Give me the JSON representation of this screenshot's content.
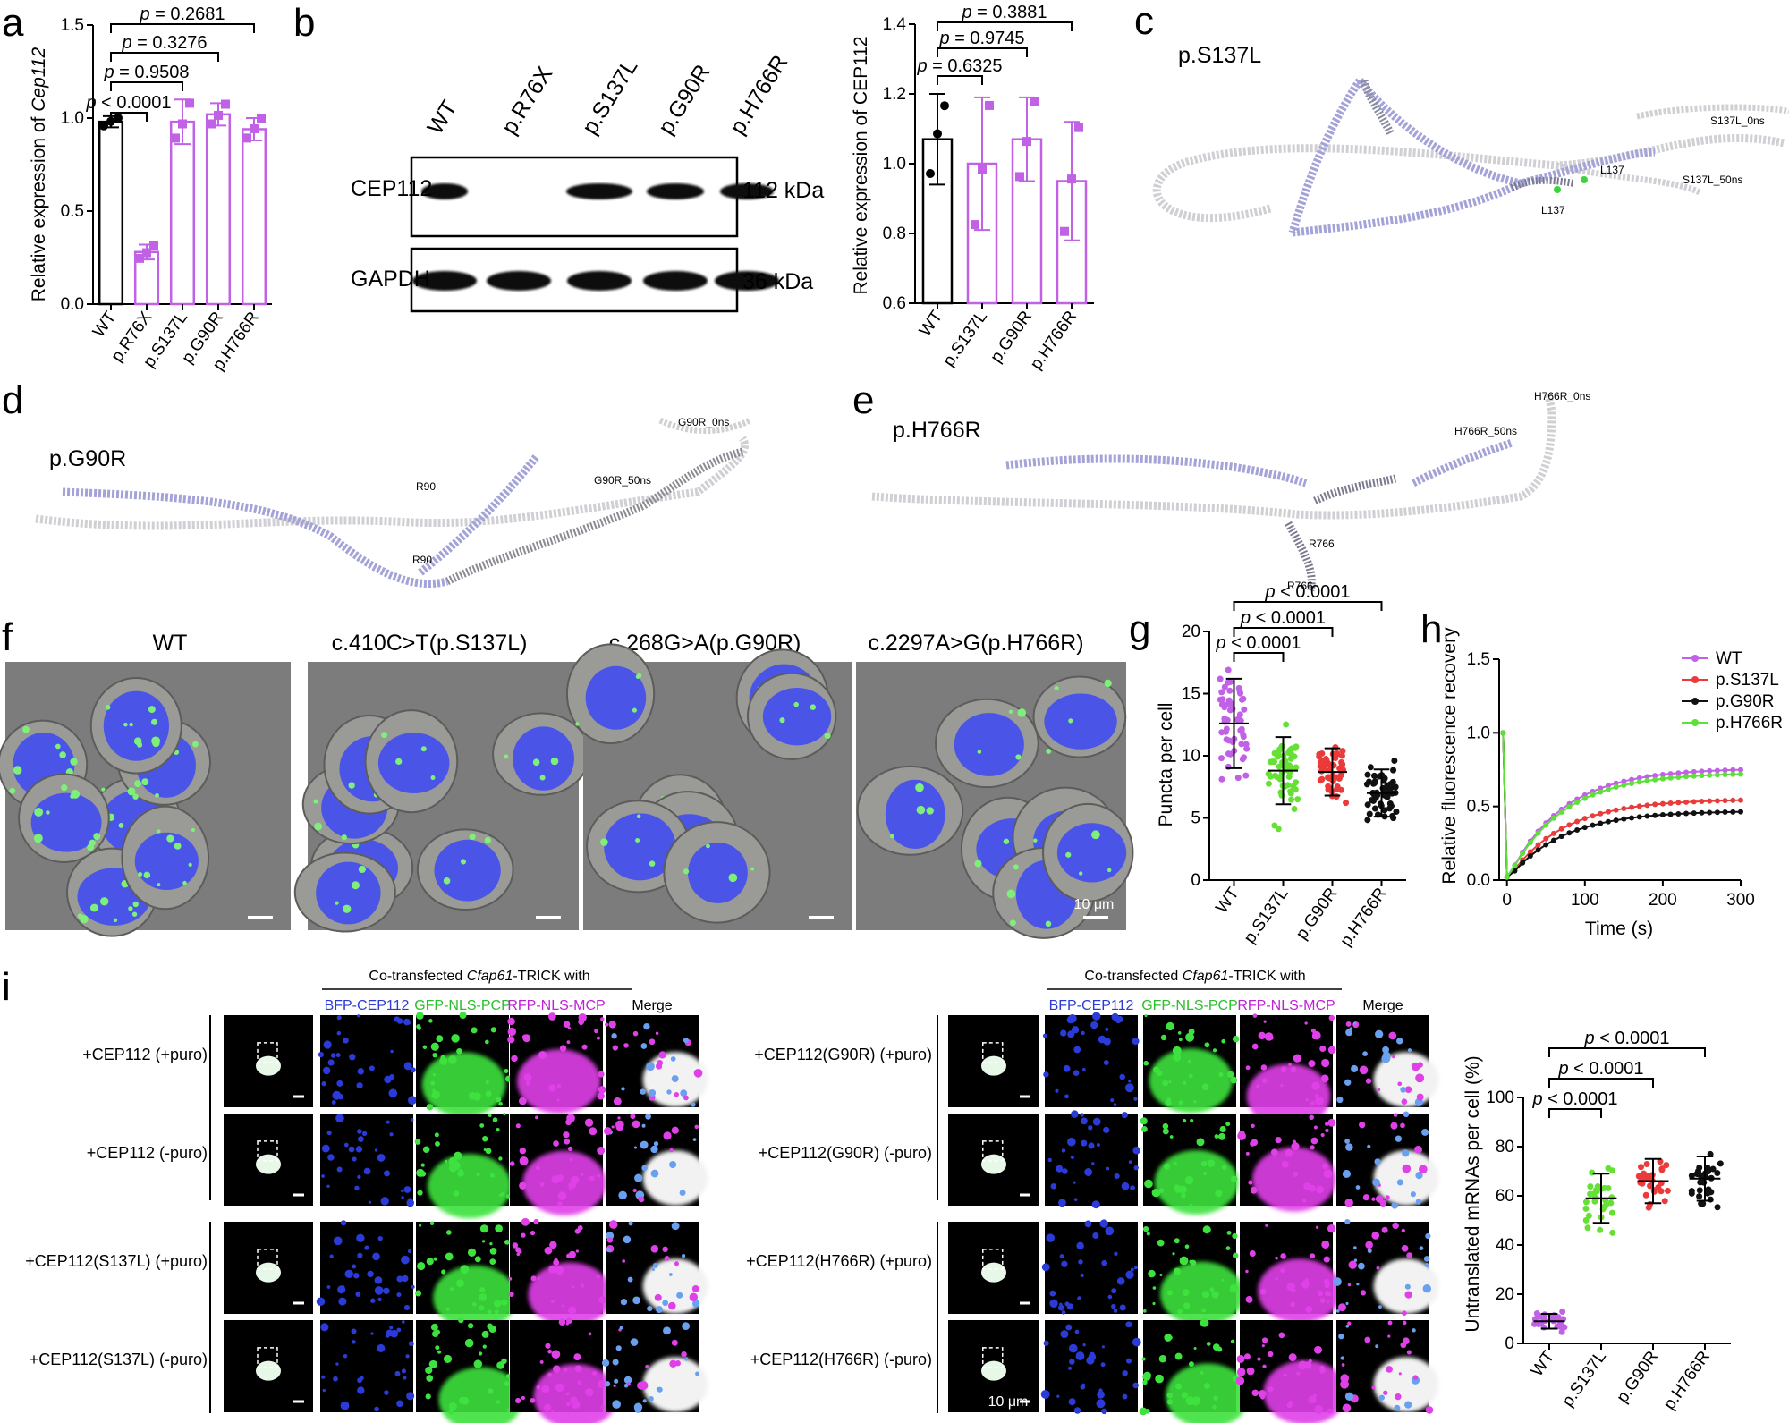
{
  "colors": {
    "wt_black": "#000000",
    "mut_purple": "#c061e6",
    "s137l_green": "#66e035",
    "g90r_red": "#ea3a3a",
    "g90r_black": "#111111",
    "h766r_green": "#5de038",
    "helix_gray": "#cfcfd4",
    "helix_blue": "#a3a3d8",
    "nucleus_blue": "#4a55e8",
    "dots_green": "#7ef07a",
    "magenta": "#e040e8"
  },
  "panels": {
    "a": "a",
    "b": "b",
    "c": "c",
    "d": "d",
    "e": "e",
    "f": "f",
    "g": "g",
    "h": "h",
    "i": "i"
  },
  "panel_a": {
    "ylabel_prefix": "Relative expression of ",
    "ylabel_gene": "Cep112",
    "p_values": [
      "p < 0.0001",
      "p = 0.9508",
      "p = 0.3276",
      "p = 0.2681"
    ],
    "p_letter": "p",
    "p_rest": [
      " < 0.0001",
      " = 0.9508",
      " = 0.3276",
      " = 0.2681"
    ]
  },
  "panel_b": {
    "lanes": [
      "WT",
      "p.R76X",
      "p.S137L",
      "p.G90R",
      "p.H766R"
    ],
    "blot_labels": [
      "CEP112",
      "GAPDH"
    ],
    "kda_labels": [
      "112 kDa",
      "36 kDa"
    ],
    "ylabel": "Relative expression of CEP112",
    "p_rest": [
      " = 0.6325",
      " = 0.9745",
      " = 0.3881"
    ]
  },
  "panel_c": {
    "title": "p.S137L",
    "labels": [
      "S137L_0ns",
      "L137",
      "L137",
      "S137L_50ns"
    ]
  },
  "panel_d": {
    "title": "p.G90R",
    "labels": [
      "G90R_0ns",
      "G90R_50ns",
      "R90",
      "R90"
    ]
  },
  "panel_e": {
    "title": "p.H766R",
    "labels": [
      "H766R_0ns",
      "H766R_50ns",
      "R766",
      "R766"
    ]
  },
  "panel_f": {
    "titles": [
      "WT",
      "c.410C>T(p.S137L)",
      "c.268G>A(p.G90R)",
      "c.2297A>G(p.H766R)"
    ],
    "scale": "10 μm"
  },
  "panel_g": {
    "ylabel": "Puncta per cell",
    "p_rest": [
      " < 0.0001",
      " < 0.0001",
      " < 0.0001"
    ]
  },
  "panel_h": {
    "ylabel": "Relative fluorescence recovery",
    "xlabel": "Time (s)",
    "legend": [
      "WT",
      "p.S137L",
      "p.G90R",
      "p.H766R"
    ]
  },
  "panel_i": {
    "header_prefix": "Co-transfected ",
    "header_gene": "Cfap61",
    "header_suffix": "-TRICK with",
    "channels": [
      "BFP-CEP112",
      "GFP-NLS-PCP",
      "RFP-NLS-MCP",
      "Merge"
    ],
    "rows_left": [
      "+CEP112 (+puro)",
      "+CEP112 (-puro)",
      "+CEP112(S137L) (+puro)",
      "+CEP112(S137L) (-puro)"
    ],
    "rows_right": [
      "+CEP112(G90R) (+puro)",
      "+CEP112(G90R) (-puro)",
      "+CEP112(H766R) (+puro)",
      "+CEP112(H766R) (-puro)"
    ],
    "scale": "10 μm",
    "ylabel": "Untranslated mRNAs per cell (%)",
    "p_rest": [
      " < 0.0001",
      " < 0.0001",
      " < 0.0001"
    ]
  },
  "chart_data": [
    {
      "type": "bar",
      "panel": "a",
      "categories": [
        "WT",
        "p.R76X",
        "p.S137L",
        "p.G90R",
        "p.H766R"
      ],
      "values": [
        0.98,
        0.28,
        0.98,
        1.02,
        0.94
      ],
      "errors": [
        0.03,
        0.04,
        0.12,
        0.06,
        0.06
      ],
      "ylim": [
        0,
        1.5
      ],
      "yticks": [
        "0.0",
        "0.5",
        "1.0",
        "1.5"
      ],
      "ylabel": "Relative expression of Cep112"
    },
    {
      "type": "bar",
      "panel": "b",
      "categories": [
        "WT",
        "p.S137L",
        "p.G90R",
        "p.H766R"
      ],
      "values": [
        1.07,
        1.0,
        1.07,
        0.95
      ],
      "errors": [
        0.13,
        0.19,
        0.12,
        0.17
      ],
      "ylim": [
        0.6,
        1.4
      ],
      "yticks": [
        "0.6",
        "0.8",
        "1.0",
        "1.2",
        "1.4"
      ],
      "ylabel": "Relative expression of CEP112"
    },
    {
      "type": "scatter",
      "panel": "g",
      "categories": [
        "WT",
        "p.S137L",
        "p.G90R",
        "p.H766R"
      ],
      "means": [
        12.6,
        8.8,
        8.7,
        7.0
      ],
      "sd": [
        3.6,
        2.7,
        1.9,
        1.9
      ],
      "ylim": [
        0,
        20
      ],
      "yticks": [
        "0",
        "5",
        "10",
        "15",
        "20"
      ],
      "ylabel": "Puncta per cell"
    },
    {
      "type": "line",
      "panel": "h",
      "series": [
        {
          "name": "WT",
          "plateau": 0.76
        },
        {
          "name": "p.S137L",
          "plateau": 0.55
        },
        {
          "name": "p.G90R",
          "plateau": 0.47
        },
        {
          "name": "p.H766R",
          "plateau": 0.73
        }
      ],
      "xlim": [
        -10,
        300
      ],
      "ylim": [
        0,
        1.5
      ],
      "xticks": [
        "0",
        "100",
        "200",
        "300"
      ],
      "yticks": [
        "0.0",
        "0.5",
        "1.0",
        "1.5"
      ],
      "xlabel": "Time (s)",
      "ylabel": "Relative fluorescence recovery"
    },
    {
      "type": "scatter",
      "panel": "i",
      "categories": [
        "WT",
        "p.S137L",
        "p.G90R",
        "p.H766R"
      ],
      "means": [
        9,
        59,
        66,
        67
      ],
      "sd": [
        3,
        10,
        9,
        9
      ],
      "ylim": [
        0,
        100
      ],
      "yticks": [
        "0",
        "20",
        "40",
        "60",
        "80",
        "100"
      ],
      "ylabel": "Untranslated mRNAs per cell (%)"
    }
  ]
}
